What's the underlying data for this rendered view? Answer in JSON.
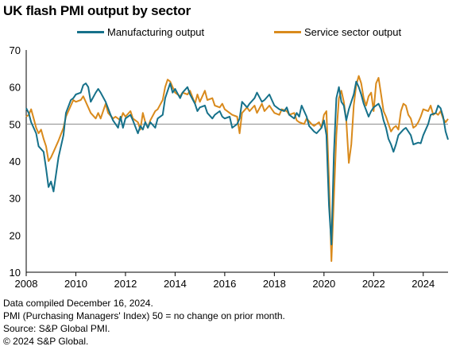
{
  "title": "UK flash PMI output by sector",
  "notes": [
    "Data compiled December 16, 2024.",
    "PMI (Purchasing Managers' Index) 50 = no change on prior month.",
    "Source: S&P Global PMI.",
    "© 2024 S&P Global."
  ],
  "colors": {
    "manufacturing": "#16718a",
    "services": "#d98a1c",
    "reference": "#8c8c8c"
  },
  "chart_data": {
    "type": "line",
    "title": "UK flash PMI output by sector",
    "xlabel": "",
    "ylabel": "",
    "xlim": [
      2008,
      2025
    ],
    "ylim": [
      10,
      70
    ],
    "yticks": [
      10,
      20,
      30,
      40,
      50,
      60,
      70
    ],
    "xticks": [
      2008,
      2010,
      2012,
      2014,
      2016,
      2018,
      2020,
      2022,
      2024
    ],
    "reference_line": 50,
    "legend_position": "top",
    "grid": false,
    "series": [
      {
        "name": "Manufacturing output",
        "color": "#16718a",
        "points": [
          [
            2008.0,
            54.3
          ],
          [
            2008.1,
            53.0
          ],
          [
            2008.2,
            50.5
          ],
          [
            2008.4,
            47.5
          ],
          [
            2008.5,
            44.0
          ],
          [
            2008.7,
            42.5
          ],
          [
            2008.8,
            38.0
          ],
          [
            2008.9,
            33.0
          ],
          [
            2009.0,
            34.5
          ],
          [
            2009.1,
            31.8
          ],
          [
            2009.3,
            41.0
          ],
          [
            2009.5,
            47.0
          ],
          [
            2009.6,
            53.0
          ],
          [
            2009.8,
            56.5
          ],
          [
            2009.9,
            57.0
          ],
          [
            2010.0,
            58.0
          ],
          [
            2010.2,
            58.5
          ],
          [
            2010.3,
            60.5
          ],
          [
            2010.4,
            61.0
          ],
          [
            2010.5,
            60.0
          ],
          [
            2010.6,
            56.0
          ],
          [
            2010.8,
            58.5
          ],
          [
            2010.9,
            59.5
          ],
          [
            2011.0,
            58.5
          ],
          [
            2011.2,
            56.0
          ],
          [
            2011.4,
            52.5
          ],
          [
            2011.5,
            51.0
          ],
          [
            2011.7,
            49.0
          ],
          [
            2011.8,
            52.0
          ],
          [
            2011.9,
            49.0
          ],
          [
            2012.0,
            51.5
          ],
          [
            2012.2,
            52.5
          ],
          [
            2012.3,
            51.0
          ],
          [
            2012.5,
            47.5
          ],
          [
            2012.6,
            49.5
          ],
          [
            2012.7,
            48.5
          ],
          [
            2012.8,
            50.5
          ],
          [
            2012.9,
            49.0
          ],
          [
            2013.0,
            50.5
          ],
          [
            2013.2,
            49.0
          ],
          [
            2013.3,
            51.5
          ],
          [
            2013.5,
            52.5
          ],
          [
            2013.6,
            57.0
          ],
          [
            2013.8,
            61.0
          ],
          [
            2013.9,
            58.5
          ],
          [
            2014.0,
            59.5
          ],
          [
            2014.2,
            57.0
          ],
          [
            2014.3,
            58.5
          ],
          [
            2014.5,
            60.0
          ],
          [
            2014.6,
            58.0
          ],
          [
            2014.8,
            55.5
          ],
          [
            2014.9,
            53.5
          ],
          [
            2015.0,
            54.5
          ],
          [
            2015.2,
            55.0
          ],
          [
            2015.3,
            53.0
          ],
          [
            2015.5,
            51.5
          ],
          [
            2015.6,
            52.5
          ],
          [
            2015.8,
            53.5
          ],
          [
            2015.9,
            52.0
          ],
          [
            2016.0,
            51.5
          ],
          [
            2016.2,
            52.0
          ],
          [
            2016.3,
            49.0
          ],
          [
            2016.5,
            50.0
          ],
          [
            2016.6,
            51.5
          ],
          [
            2016.7,
            56.0
          ],
          [
            2016.9,
            54.5
          ],
          [
            2017.0,
            55.5
          ],
          [
            2017.2,
            57.0
          ],
          [
            2017.3,
            58.5
          ],
          [
            2017.5,
            56.0
          ],
          [
            2017.6,
            56.5
          ],
          [
            2017.8,
            58.0
          ],
          [
            2017.9,
            56.5
          ],
          [
            2018.0,
            55.0
          ],
          [
            2018.2,
            54.0
          ],
          [
            2018.4,
            53.5
          ],
          [
            2018.5,
            54.5
          ],
          [
            2018.6,
            52.5
          ],
          [
            2018.8,
            51.5
          ],
          [
            2018.9,
            53.0
          ],
          [
            2019.0,
            52.0
          ],
          [
            2019.1,
            55.0
          ],
          [
            2019.3,
            52.0
          ],
          [
            2019.4,
            49.5
          ],
          [
            2019.6,
            48.0
          ],
          [
            2019.7,
            47.5
          ],
          [
            2019.9,
            49.0
          ],
          [
            2020.0,
            51.0
          ],
          [
            2020.1,
            47.0
          ],
          [
            2020.2,
            28.0
          ],
          [
            2020.3,
            17.5
          ],
          [
            2020.4,
            42.0
          ],
          [
            2020.5,
            57.0
          ],
          [
            2020.6,
            60.0
          ],
          [
            2020.7,
            56.0
          ],
          [
            2020.8,
            55.0
          ],
          [
            2020.9,
            51.0
          ],
          [
            2021.0,
            54.0
          ],
          [
            2021.2,
            58.0
          ],
          [
            2021.3,
            61.5
          ],
          [
            2021.4,
            60.0
          ],
          [
            2021.5,
            58.0
          ],
          [
            2021.6,
            55.5
          ],
          [
            2021.8,
            52.0
          ],
          [
            2021.9,
            53.5
          ],
          [
            2022.0,
            54.5
          ],
          [
            2022.2,
            55.5
          ],
          [
            2022.3,
            54.0
          ],
          [
            2022.4,
            51.0
          ],
          [
            2022.5,
            49.0
          ],
          [
            2022.6,
            46.0
          ],
          [
            2022.7,
            44.5
          ],
          [
            2022.8,
            42.5
          ],
          [
            2022.9,
            44.5
          ],
          [
            2023.0,
            47.0
          ],
          [
            2023.2,
            48.5
          ],
          [
            2023.3,
            49.0
          ],
          [
            2023.5,
            47.0
          ],
          [
            2023.6,
            44.5
          ],
          [
            2023.8,
            45.0
          ],
          [
            2023.9,
            44.8
          ],
          [
            2024.0,
            47.0
          ],
          [
            2024.2,
            50.0
          ],
          [
            2024.3,
            52.5
          ],
          [
            2024.5,
            53.0
          ],
          [
            2024.6,
            55.0
          ],
          [
            2024.7,
            54.3
          ],
          [
            2024.8,
            52.0
          ],
          [
            2024.9,
            48.0
          ],
          [
            2025.0,
            45.8
          ]
        ]
      },
      {
        "name": "Service sector output",
        "color": "#d98a1c",
        "points": [
          [
            2008.0,
            52.0
          ],
          [
            2008.1,
            52.5
          ],
          [
            2008.2,
            54.0
          ],
          [
            2008.3,
            51.5
          ],
          [
            2008.4,
            49.0
          ],
          [
            2008.5,
            47.5
          ],
          [
            2008.6,
            48.5
          ],
          [
            2008.7,
            46.0
          ],
          [
            2008.8,
            44.0
          ],
          [
            2008.9,
            40.0
          ],
          [
            2009.0,
            41.0
          ],
          [
            2009.1,
            42.5
          ],
          [
            2009.3,
            45.5
          ],
          [
            2009.5,
            49.0
          ],
          [
            2009.6,
            52.0
          ],
          [
            2009.8,
            55.0
          ],
          [
            2009.9,
            56.5
          ],
          [
            2010.0,
            56.0
          ],
          [
            2010.2,
            56.5
          ],
          [
            2010.3,
            57.5
          ],
          [
            2010.5,
            54.5
          ],
          [
            2010.6,
            53.0
          ],
          [
            2010.8,
            51.5
          ],
          [
            2010.9,
            53.0
          ],
          [
            2011.0,
            51.5
          ],
          [
            2011.2,
            55.5
          ],
          [
            2011.3,
            53.0
          ],
          [
            2011.5,
            51.5
          ],
          [
            2011.6,
            52.0
          ],
          [
            2011.8,
            51.0
          ],
          [
            2011.9,
            53.0
          ],
          [
            2012.0,
            52.0
          ],
          [
            2012.2,
            53.5
          ],
          [
            2012.3,
            51.5
          ],
          [
            2012.5,
            50.5
          ],
          [
            2012.6,
            48.5
          ],
          [
            2012.7,
            53.0
          ],
          [
            2012.8,
            50.5
          ],
          [
            2012.9,
            49.0
          ],
          [
            2013.0,
            51.0
          ],
          [
            2013.2,
            53.5
          ],
          [
            2013.3,
            54.0
          ],
          [
            2013.5,
            56.5
          ],
          [
            2013.6,
            60.0
          ],
          [
            2013.7,
            62.0
          ],
          [
            2013.8,
            61.5
          ],
          [
            2013.9,
            60.0
          ],
          [
            2014.0,
            58.5
          ],
          [
            2014.2,
            57.5
          ],
          [
            2014.3,
            58.5
          ],
          [
            2014.5,
            58.0
          ],
          [
            2014.6,
            59.0
          ],
          [
            2014.8,
            55.5
          ],
          [
            2014.9,
            58.0
          ],
          [
            2015.0,
            56.0
          ],
          [
            2015.2,
            59.0
          ],
          [
            2015.3,
            56.5
          ],
          [
            2015.5,
            57.0
          ],
          [
            2015.6,
            55.0
          ],
          [
            2015.8,
            54.5
          ],
          [
            2015.9,
            55.5
          ],
          [
            2016.0,
            54.0
          ],
          [
            2016.2,
            53.0
          ],
          [
            2016.3,
            52.5
          ],
          [
            2016.5,
            52.0
          ],
          [
            2016.6,
            47.5
          ],
          [
            2016.7,
            53.0
          ],
          [
            2016.9,
            54.5
          ],
          [
            2017.0,
            53.5
          ],
          [
            2017.2,
            55.0
          ],
          [
            2017.3,
            53.0
          ],
          [
            2017.5,
            55.5
          ],
          [
            2017.6,
            53.5
          ],
          [
            2017.8,
            55.0
          ],
          [
            2017.9,
            54.0
          ],
          [
            2018.0,
            53.0
          ],
          [
            2018.2,
            52.5
          ],
          [
            2018.3,
            54.0
          ],
          [
            2018.5,
            53.5
          ],
          [
            2018.6,
            52.5
          ],
          [
            2018.8,
            53.0
          ],
          [
            2018.9,
            51.0
          ],
          [
            2019.0,
            50.5
          ],
          [
            2019.2,
            50.0
          ],
          [
            2019.3,
            51.5
          ],
          [
            2019.5,
            50.0
          ],
          [
            2019.6,
            49.5
          ],
          [
            2019.8,
            50.5
          ],
          [
            2019.9,
            49.0
          ],
          [
            2020.0,
            52.5
          ],
          [
            2020.1,
            53.5
          ],
          [
            2020.2,
            35.0
          ],
          [
            2020.3,
            13.0
          ],
          [
            2020.4,
            30.0
          ],
          [
            2020.5,
            47.0
          ],
          [
            2020.6,
            57.0
          ],
          [
            2020.7,
            59.0
          ],
          [
            2020.8,
            56.0
          ],
          [
            2020.9,
            51.0
          ],
          [
            2021.0,
            39.5
          ],
          [
            2021.1,
            44.5
          ],
          [
            2021.2,
            55.0
          ],
          [
            2021.3,
            60.5
          ],
          [
            2021.4,
            63.0
          ],
          [
            2021.5,
            61.0
          ],
          [
            2021.6,
            57.0
          ],
          [
            2021.7,
            55.0
          ],
          [
            2021.8,
            57.5
          ],
          [
            2021.9,
            58.5
          ],
          [
            2022.0,
            53.5
          ],
          [
            2022.1,
            61.0
          ],
          [
            2022.2,
            62.5
          ],
          [
            2022.3,
            58.0
          ],
          [
            2022.4,
            53.5
          ],
          [
            2022.5,
            52.0
          ],
          [
            2022.6,
            50.0
          ],
          [
            2022.7,
            48.0
          ],
          [
            2022.8,
            49.0
          ],
          [
            2022.9,
            49.5
          ],
          [
            2023.0,
            48.5
          ],
          [
            2023.1,
            53.5
          ],
          [
            2023.2,
            55.5
          ],
          [
            2023.3,
            55.0
          ],
          [
            2023.4,
            52.5
          ],
          [
            2023.5,
            51.5
          ],
          [
            2023.6,
            49.0
          ],
          [
            2023.7,
            49.5
          ],
          [
            2023.8,
            50.5
          ],
          [
            2023.9,
            52.0
          ],
          [
            2024.0,
            54.0
          ],
          [
            2024.2,
            53.5
          ],
          [
            2024.3,
            55.0
          ],
          [
            2024.4,
            52.5
          ],
          [
            2024.5,
            53.0
          ],
          [
            2024.6,
            52.5
          ],
          [
            2024.7,
            53.5
          ],
          [
            2024.8,
            51.5
          ],
          [
            2024.9,
            50.5
          ],
          [
            2025.0,
            51.4
          ]
        ]
      }
    ]
  }
}
